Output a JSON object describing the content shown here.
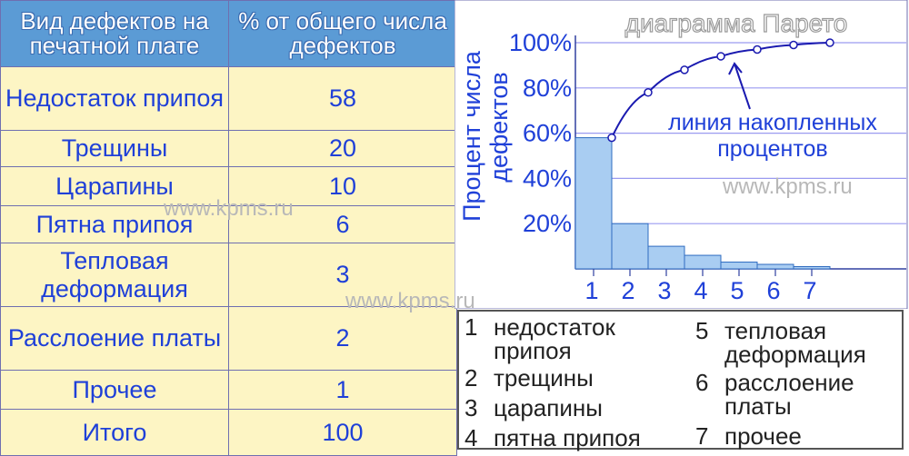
{
  "table": {
    "header": [
      "Вид дефектов на печатной плате",
      "% от общего числа дефектов"
    ],
    "rows": [
      {
        "name": "Недостаток припоя",
        "value": "58"
      },
      {
        "name": "Трещины",
        "value": "20"
      },
      {
        "name": "Царапины",
        "value": "10"
      },
      {
        "name": "Пятна припоя",
        "value": "6"
      },
      {
        "name": "Тепловая деформация",
        "value": "3"
      },
      {
        "name": "Расслоение платы",
        "value": "2"
      },
      {
        "name": "Прочее",
        "value": "1"
      }
    ],
    "total": {
      "name": "Итого",
      "value": "100"
    }
  },
  "chart_data": {
    "type": "bar",
    "title": "диаграмма Парето",
    "ylabel": "Процент числа дефектов",
    "categories": [
      "1",
      "2",
      "3",
      "4",
      "5",
      "6",
      "7"
    ],
    "y_ticks": [
      "20%",
      "40%",
      "60%",
      "80%",
      "100%"
    ],
    "ylim": [
      0,
      100
    ],
    "series": [
      {
        "values": [
          58,
          20,
          10,
          6,
          3,
          2,
          1
        ]
      },
      {
        "name": "линия накопленных процентов",
        "values": [
          58,
          78,
          88,
          94,
          97,
          99,
          100
        ]
      }
    ],
    "annotation": "линия накопленных процентов",
    "grid": true
  },
  "legend": [
    {
      "num": "1",
      "label": "недостаток припоя"
    },
    {
      "num": "2",
      "label": "трещины"
    },
    {
      "num": "3",
      "label": "царапины"
    },
    {
      "num": "4",
      "label": "пятна припоя"
    },
    {
      "num": "5",
      "label": "тепловая деформация"
    },
    {
      "num": "6",
      "label": "расслоение платы"
    },
    {
      "num": "7",
      "label": "прочее"
    }
  ],
  "watermark": "www.kpms.ru",
  "colors": {
    "bar": "#a9cdf2",
    "bar_stroke": "#2f6cc0",
    "line": "#1a1ab0",
    "text_blue": "#1f40d8",
    "header_bg": "#5b9bd5",
    "cell_bg": "#fdf5c4"
  }
}
